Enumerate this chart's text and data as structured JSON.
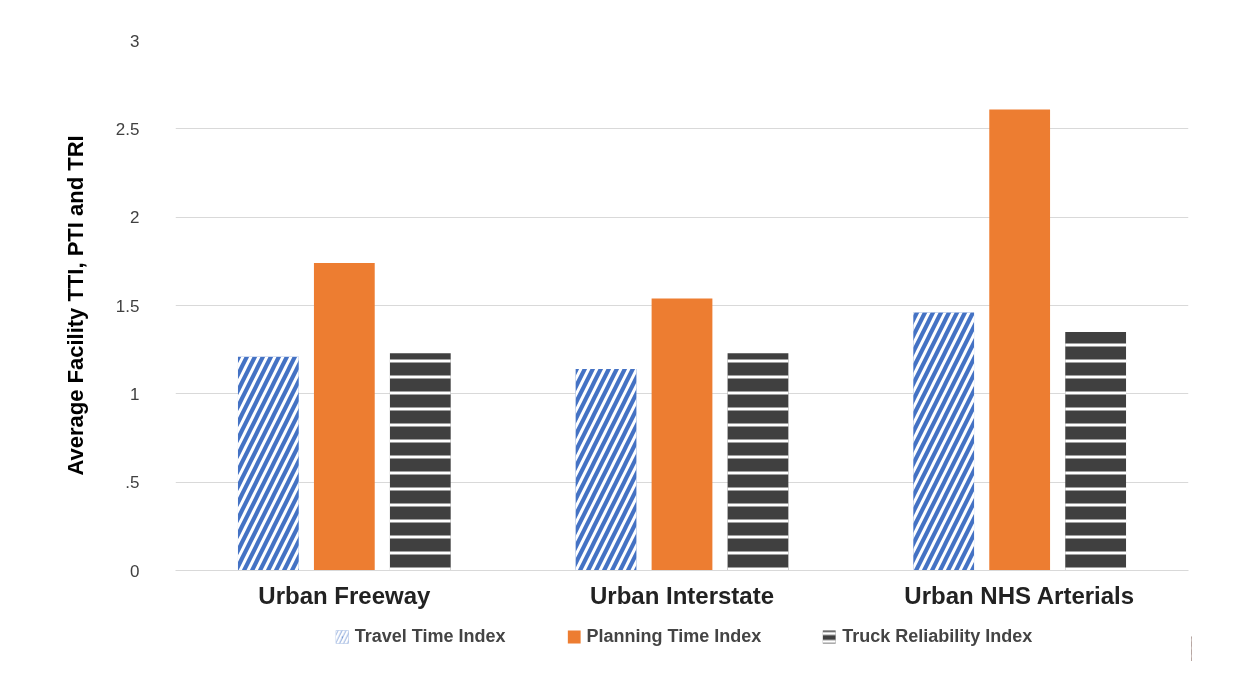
{
  "chart_data": {
    "type": "bar",
    "ylabel": "Average Facility TTI, PTI and TRI",
    "categories": [
      "Urban Freeway",
      "Urban Interstate",
      "Urban NHS Arterials"
    ],
    "series": [
      {
        "name": "Travel Time Index",
        "color": "#4472c4",
        "values": [
          1.21,
          1.14,
          1.46
        ]
      },
      {
        "name": "Planning Time Index",
        "color": "#ed7d31",
        "values": [
          1.74,
          1.54,
          2.61
        ]
      },
      {
        "name": "Truck Reliability Index",
        "color": "#404040",
        "values": [
          1.23,
          1.23,
          1.35
        ]
      }
    ],
    "ylim": [
      0,
      3
    ],
    "yticks": [
      0,
      {
        "value": 0.5,
        "label": ".5"
      },
      1,
      1.5,
      2,
      2.5,
      3
    ],
    "grid": "y",
    "legend": "bottom"
  }
}
